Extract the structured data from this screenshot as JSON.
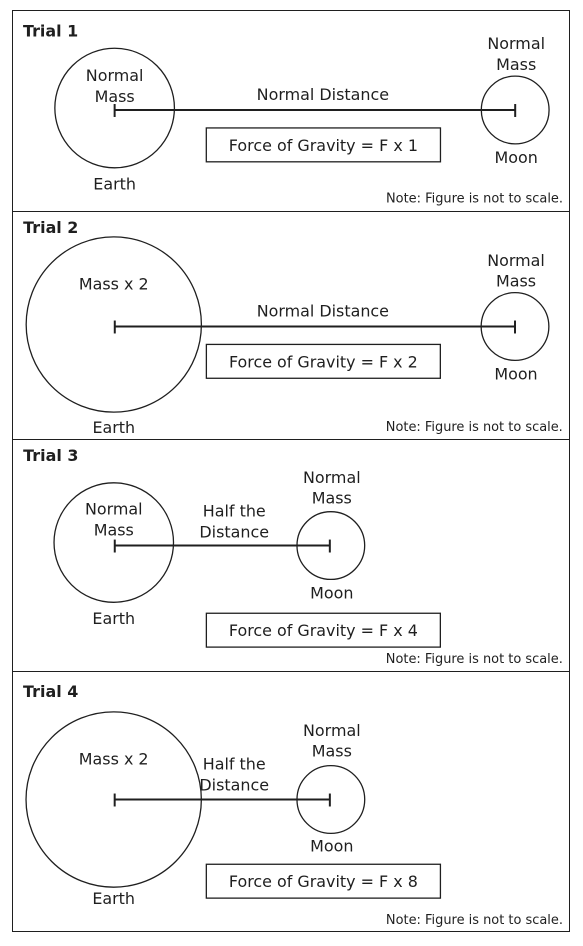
{
  "note": "Note: Figure is not to scale.",
  "trials": [
    {
      "title": "Trial 1",
      "earth_mass_lines": [
        "Normal",
        "Mass"
      ],
      "earth_label": "Earth",
      "distance_lines": [
        "Normal Distance"
      ],
      "moon_mass_lines": [
        "Normal",
        "Mass"
      ],
      "moon_label": "Moon",
      "force": "Force of Gravity = F x 1"
    },
    {
      "title": "Trial 2",
      "earth_mass_lines": [
        "Mass x 2"
      ],
      "earth_label": "Earth",
      "distance_lines": [
        "Normal Distance"
      ],
      "moon_mass_lines": [
        "Normal",
        "Mass"
      ],
      "moon_label": "Moon",
      "force": "Force of Gravity = F x 2"
    },
    {
      "title": "Trial 3",
      "earth_mass_lines": [
        "Normal",
        "Mass"
      ],
      "earth_label": "Earth",
      "distance_lines": [
        "Half the",
        "Distance"
      ],
      "moon_mass_lines": [
        "Normal",
        "Mass"
      ],
      "moon_label": "Moon",
      "force": "Force of Gravity = F x 4"
    },
    {
      "title": "Trial 4",
      "earth_mass_lines": [
        "Mass x 2"
      ],
      "earth_label": "Earth",
      "distance_lines": [
        "Half the",
        "Distance"
      ],
      "moon_mass_lines": [
        "Normal",
        "Mass"
      ],
      "moon_label": "Moon",
      "force": "Force of Gravity = F x 8"
    }
  ]
}
